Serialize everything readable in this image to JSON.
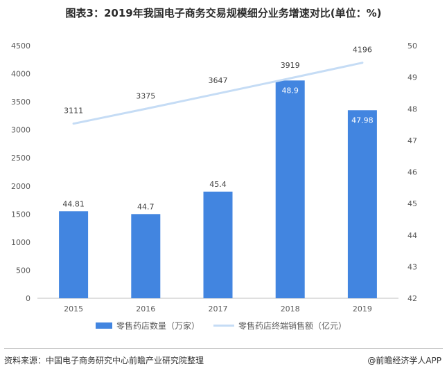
{
  "title": "图表3：2019年我国电子商务交易规模细分业务增速对比(单位：%)",
  "chart_data": {
    "type": "bar",
    "categories": [
      "2015",
      "2016",
      "2017",
      "2018",
      "2019"
    ],
    "series": [
      {
        "name": "零售药店数量（万家）",
        "type": "bar",
        "axis": "left",
        "values": [
          1550,
          1500,
          1900,
          3880,
          3350
        ],
        "labels": [
          "44.81",
          "44.7",
          "45.4",
          "48.9",
          "47.98"
        ],
        "color": "#4285e0"
      },
      {
        "name": "零售药店终端销售额（亿元）",
        "type": "line",
        "axis": "left",
        "values": [
          3111,
          3375,
          3647,
          3919,
          4196
        ],
        "labels": [
          "3111",
          "3375",
          "3647",
          "3919",
          "4196"
        ],
        "color": "#c5dcf5"
      }
    ],
    "left_axis": {
      "ylim": [
        0,
        4500
      ],
      "ticks": [
        "0",
        "500",
        "1000",
        "1500",
        "2000",
        "2500",
        "3000",
        "3500",
        "4000",
        "4500"
      ]
    },
    "right_axis": {
      "ylim": [
        42,
        50
      ],
      "ticks": [
        "42",
        "43",
        "44",
        "45",
        "46",
        "47",
        "48",
        "49",
        "50"
      ]
    },
    "legend_position": "bottom",
    "grid": false
  },
  "source": "资料来源：中国电子商务研究中心前瞻产业研究院整理",
  "brand": "@前瞻经济学人APP"
}
